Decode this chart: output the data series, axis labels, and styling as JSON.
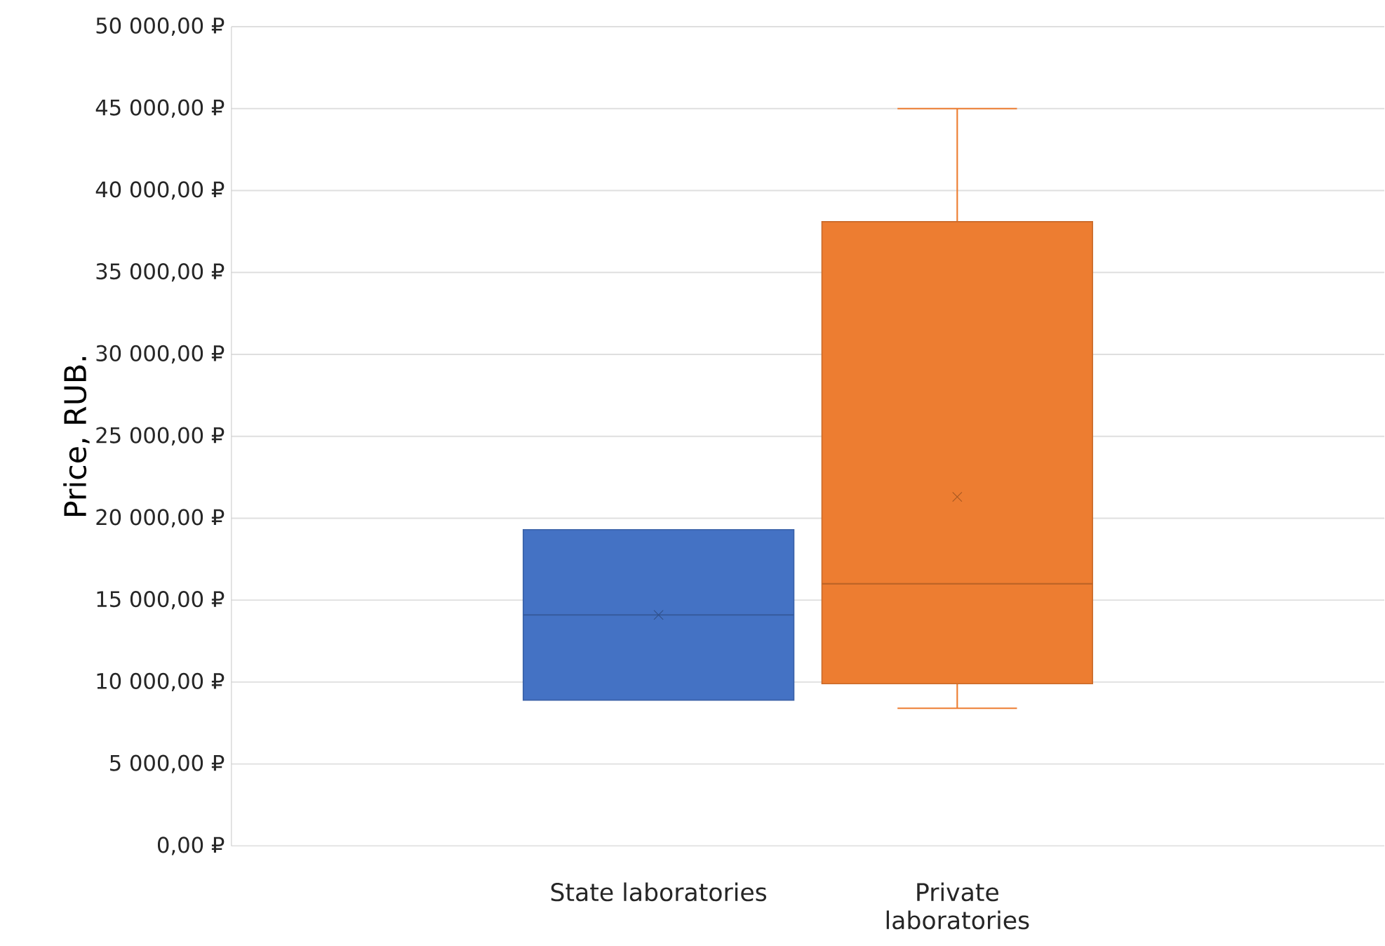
{
  "chart_data": {
    "type": "box",
    "ylabel": "Price, RUB.",
    "categories": [
      "State laboratories",
      "Private laboratories"
    ],
    "boxes": [
      {
        "low": 8900,
        "q1": 8900,
        "median": 14100,
        "q3": 19300,
        "high": 19300,
        "mean": 14100
      },
      {
        "low": 8400,
        "q1": 9900,
        "median": 16000,
        "q3": 38100,
        "high": 45000,
        "mean": 21300
      }
    ],
    "colors": [
      "#4472c4",
      "#ed7d31"
    ],
    "ylim": [
      0,
      50000
    ],
    "yticks": [
      {
        "value": 0,
        "label": "0,00 ₽"
      },
      {
        "value": 5000,
        "label": "5 000,00 ₽"
      },
      {
        "value": 10000,
        "label": "10 000,00 ₽"
      },
      {
        "value": 15000,
        "label": "15 000,00 ₽"
      },
      {
        "value": 20000,
        "label": "20 000,00 ₽"
      },
      {
        "value": 25000,
        "label": "25 000,00 ₽"
      },
      {
        "value": 30000,
        "label": "30 000,00 ₽"
      },
      {
        "value": 35000,
        "label": "35 000,00 ₽"
      },
      {
        "value": 40000,
        "label": "40 000,00 ₽"
      },
      {
        "value": 45000,
        "label": "45 000,00 ₽"
      },
      {
        "value": 50000,
        "label": "50 000,00 ₽"
      }
    ],
    "grid": "y"
  }
}
